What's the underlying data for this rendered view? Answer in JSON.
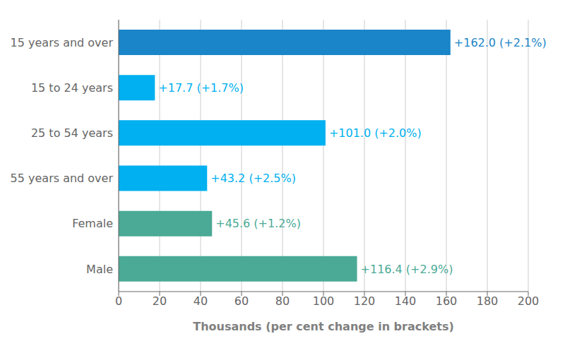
{
  "chart_data": {
    "type": "bar",
    "orientation": "horizontal",
    "categories": [
      "15 years and over",
      "15 to 24 years",
      "25 to 54 years",
      "55 years and over",
      "Female",
      "Male"
    ],
    "values": [
      162.0,
      17.7,
      101.0,
      43.2,
      45.6,
      116.4
    ],
    "value_labels": [
      "+162.0 (+2.1%)",
      "+17.7 (+1.7%)",
      "+101.0 (+2.0%)",
      "+43.2 (+2.5%)",
      "+45.6 (+1.2%)",
      "+116.4 (+2.9%)"
    ],
    "colors": [
      "#1a85c8",
      "#00b0f0",
      "#00b0f0",
      "#00b0f0",
      "#4aaa96",
      "#4aaa96"
    ],
    "xlabel": "Thousands (per cent change in brackets)",
    "xlim": [
      0,
      200
    ],
    "xticks": [
      0,
      20,
      40,
      60,
      80,
      100,
      120,
      140,
      160,
      180,
      200
    ],
    "grid": true
  }
}
